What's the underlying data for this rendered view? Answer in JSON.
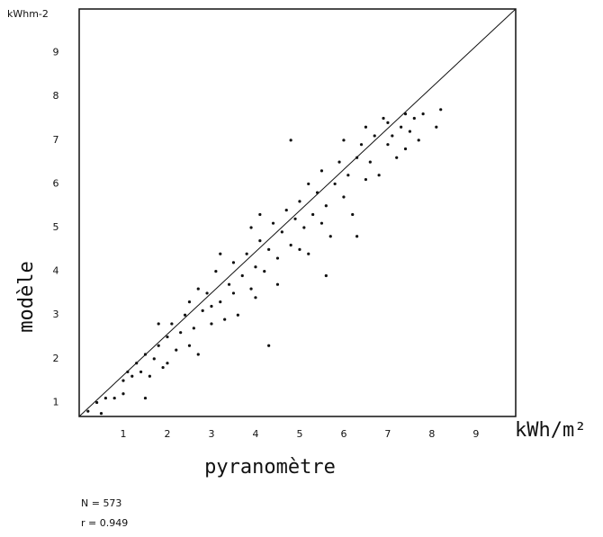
{
  "chart_data": {
    "type": "scatter",
    "y_unit": "kWhm-2",
    "x_unit": "kWh/m²",
    "ylabel": "modèle",
    "xlabel": "pyranomètre",
    "annotations": [
      "N = 573",
      "r = 0.949"
    ],
    "color": "#111111",
    "xlim": [
      0,
      9.9
    ],
    "ylim": [
      0.68,
      10
    ],
    "xticks": [
      1,
      2,
      3,
      4,
      5,
      6,
      7,
      8,
      9
    ],
    "yticks": [
      1,
      2,
      3,
      4,
      5,
      6,
      7,
      8,
      9
    ],
    "x": [
      0.2,
      0.4,
      0.5,
      0.6,
      0.8,
      1.0,
      1.0,
      1.1,
      1.2,
      1.3,
      1.4,
      1.5,
      1.5,
      1.6,
      1.7,
      1.8,
      1.9,
      2.0,
      2.0,
      2.1,
      2.2,
      2.3,
      2.4,
      2.5,
      2.5,
      2.6,
      2.7,
      2.8,
      2.9,
      3.0,
      3.0,
      3.1,
      3.2,
      3.3,
      3.4,
      3.5,
      3.5,
      3.6,
      3.7,
      3.8,
      3.9,
      4.0,
      4.0,
      4.1,
      4.2,
      4.3,
      4.3,
      4.4,
      4.5,
      4.5,
      4.6,
      4.7,
      4.8,
      4.9,
      5.0,
      5.0,
      5.1,
      5.2,
      5.2,
      5.3,
      5.4,
      5.5,
      5.5,
      5.6,
      5.7,
      5.8,
      5.9,
      6.0,
      6.0,
      6.1,
      6.2,
      6.3,
      6.4,
      6.5,
      6.5,
      6.6,
      6.7,
      6.8,
      6.9,
      7.0,
      7.0,
      7.1,
      7.2,
      7.3,
      7.4,
      7.5,
      7.6,
      7.7,
      7.8,
      8.1,
      8.2,
      4.8,
      3.2,
      2.7,
      5.6,
      6.3,
      4.1,
      1.8,
      3.9,
      7.4
    ],
    "values": [
      0.8,
      1.0,
      0.75,
      1.1,
      1.1,
      1.2,
      1.5,
      1.7,
      1.6,
      1.9,
      1.7,
      1.1,
      2.1,
      1.6,
      2.0,
      2.3,
      1.8,
      2.5,
      1.9,
      2.8,
      2.2,
      2.6,
      3.0,
      2.3,
      3.3,
      2.7,
      2.1,
      3.1,
      3.5,
      2.8,
      3.2,
      4.0,
      3.3,
      2.9,
      3.7,
      3.5,
      4.2,
      3.0,
      3.9,
      4.4,
      3.6,
      4.1,
      3.4,
      4.7,
      4.0,
      2.3,
      4.5,
      5.1,
      4.3,
      3.7,
      4.9,
      5.4,
      4.6,
      5.2,
      4.5,
      5.6,
      5.0,
      6.0,
      4.4,
      5.3,
      5.8,
      5.1,
      6.3,
      5.5,
      4.8,
      6.0,
      6.5,
      5.7,
      7.0,
      6.2,
      5.3,
      6.6,
      6.9,
      6.1,
      7.3,
      6.5,
      7.1,
      6.2,
      7.5,
      6.9,
      7.4,
      7.1,
      6.6,
      7.3,
      7.6,
      7.2,
      7.5,
      7.0,
      7.6,
      7.3,
      7.7,
      7.0,
      4.4,
      3.6,
      3.9,
      4.8,
      5.3,
      2.8,
      5.0,
      6.8
    ]
  }
}
